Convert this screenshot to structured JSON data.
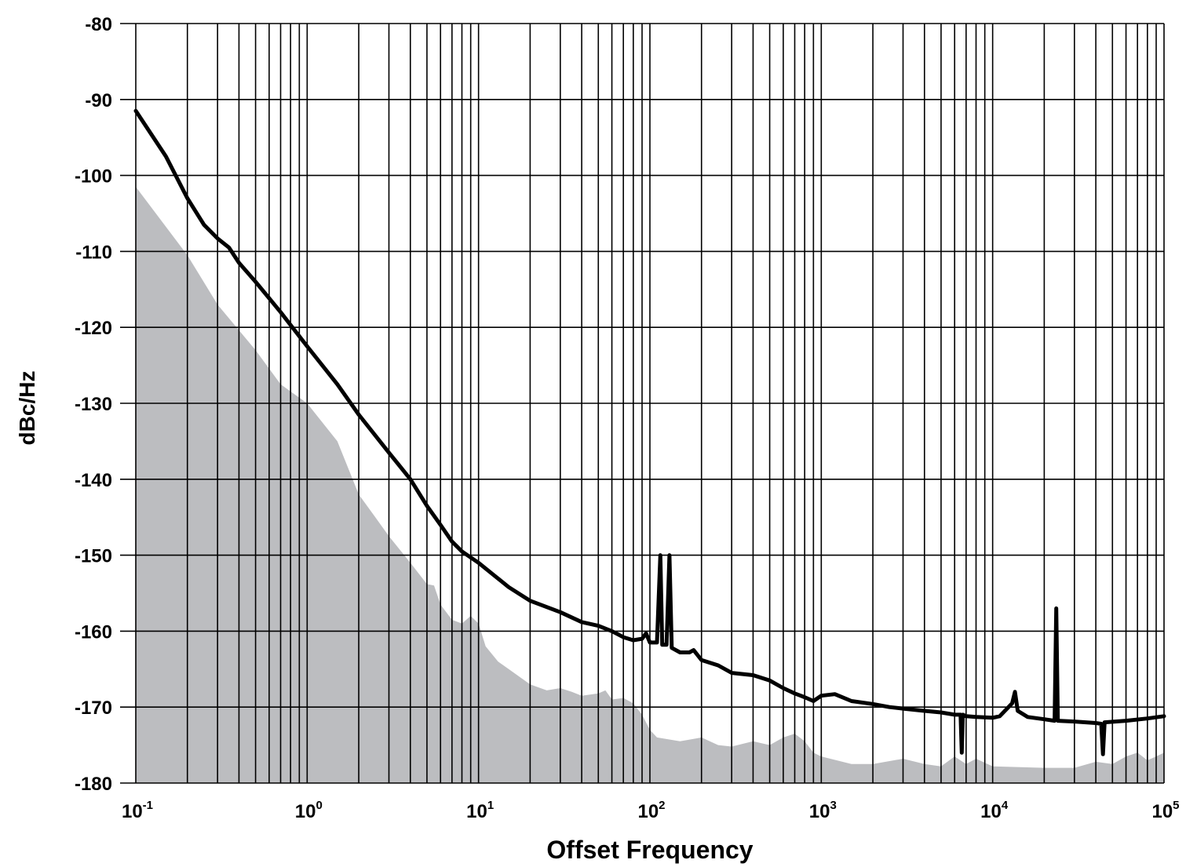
{
  "chart_data": {
    "type": "line",
    "title": "",
    "xlabel": "Offset Frequency",
    "ylabel": "dBc/Hz",
    "x_scale": "log",
    "xlim": [
      0.1,
      100000
    ],
    "ylim": [
      -180,
      -80
    ],
    "grid": true,
    "x_tick_labels": [
      {
        "value": 0.1,
        "base": "10",
        "exp": "-1"
      },
      {
        "value": 1,
        "base": "10",
        "exp": "0"
      },
      {
        "value": 10,
        "base": "10",
        "exp": "1"
      },
      {
        "value": 100,
        "base": "10",
        "exp": "2"
      },
      {
        "value": 1000,
        "base": "10",
        "exp": "3"
      },
      {
        "value": 10000,
        "base": "10",
        "exp": "4"
      },
      {
        "value": 100000,
        "base": "10",
        "exp": "5"
      }
    ],
    "y_tick_labels": [
      "-80",
      "-90",
      "-100",
      "-110",
      "-120",
      "-130",
      "-140",
      "-150",
      "-160",
      "-170",
      "-180"
    ],
    "series": [
      {
        "kind": "line",
        "color": "#000000",
        "points": [
          [
            0.1,
            -91.5
          ],
          [
            0.15,
            -97.5
          ],
          [
            0.2,
            -103
          ],
          [
            0.25,
            -106.5
          ],
          [
            0.3,
            -108.3
          ],
          [
            0.35,
            -109.5
          ],
          [
            0.4,
            -111.5
          ],
          [
            0.5,
            -114
          ],
          [
            0.7,
            -118
          ],
          [
            1,
            -122.5
          ],
          [
            1.5,
            -127.5
          ],
          [
            2,
            -131.5
          ],
          [
            3,
            -136.5
          ],
          [
            4,
            -140
          ],
          [
            5,
            -143.5
          ],
          [
            6,
            -146
          ],
          [
            7,
            -148.2
          ],
          [
            8,
            -149.5
          ],
          [
            9,
            -150.3
          ],
          [
            10,
            -151
          ],
          [
            15,
            -154.2
          ],
          [
            20,
            -156
          ],
          [
            30,
            -157.5
          ],
          [
            40,
            -158.8
          ],
          [
            50,
            -159.3
          ],
          [
            60,
            -160
          ],
          [
            70,
            -160.8
          ],
          [
            80,
            -161.2
          ],
          [
            90,
            -161
          ],
          [
            95,
            -160.3
          ],
          [
            100,
            -161.5
          ],
          [
            110,
            -161.5
          ],
          [
            115,
            -150
          ],
          [
            118,
            -161.8
          ],
          [
            125,
            -161.8
          ],
          [
            130,
            -150
          ],
          [
            134,
            -162.2
          ],
          [
            150,
            -162.8
          ],
          [
            170,
            -162.8
          ],
          [
            180,
            -162.5
          ],
          [
            200,
            -163.8
          ],
          [
            250,
            -164.5
          ],
          [
            300,
            -165.5
          ],
          [
            400,
            -165.8
          ],
          [
            500,
            -166.5
          ],
          [
            600,
            -167.5
          ],
          [
            700,
            -168.2
          ],
          [
            800,
            -168.7
          ],
          [
            900,
            -169.2
          ],
          [
            1000,
            -168.5
          ],
          [
            1200,
            -168.3
          ],
          [
            1500,
            -169.2
          ],
          [
            2000,
            -169.6
          ],
          [
            2500,
            -170
          ],
          [
            3000,
            -170.2
          ],
          [
            4000,
            -170.5
          ],
          [
            5000,
            -170.7
          ],
          [
            6000,
            -171
          ],
          [
            6500,
            -171
          ],
          [
            6600,
            -176
          ],
          [
            6700,
            -171
          ],
          [
            7000,
            -171.2
          ],
          [
            8000,
            -171.3
          ],
          [
            10000,
            -171.4
          ],
          [
            11000,
            -171.2
          ],
          [
            13000,
            -169.5
          ],
          [
            13500,
            -168
          ],
          [
            14000,
            -170.5
          ],
          [
            16000,
            -171.3
          ],
          [
            20000,
            -171.6
          ],
          [
            23000,
            -171.8
          ],
          [
            23500,
            -157
          ],
          [
            24000,
            -171.8
          ],
          [
            30000,
            -171.9
          ],
          [
            40000,
            -172.1
          ],
          [
            43000,
            -172.2
          ],
          [
            44000,
            -176.2
          ],
          [
            45000,
            -172
          ],
          [
            60000,
            -171.8
          ],
          [
            80000,
            -171.5
          ],
          [
            100000,
            -171.2
          ]
        ]
      },
      {
        "kind": "area",
        "color": "#bcbdc0",
        "points": [
          [
            0.1,
            -101.5
          ],
          [
            0.2,
            -110.5
          ],
          [
            0.3,
            -117
          ],
          [
            0.5,
            -123
          ],
          [
            0.7,
            -127.5
          ],
          [
            1,
            -130
          ],
          [
            1.5,
            -135
          ],
          [
            2,
            -142
          ],
          [
            2.5,
            -145
          ],
          [
            3,
            -147.5
          ],
          [
            4,
            -151
          ],
          [
            5,
            -153.8
          ],
          [
            5.5,
            -154
          ],
          [
            6,
            -156.5
          ],
          [
            7,
            -158.5
          ],
          [
            8,
            -159
          ],
          [
            9,
            -158
          ],
          [
            10,
            -159
          ],
          [
            11,
            -162
          ],
          [
            13,
            -164
          ],
          [
            15,
            -165
          ],
          [
            20,
            -167
          ],
          [
            25,
            -167.8
          ],
          [
            30,
            -167.5
          ],
          [
            35,
            -168
          ],
          [
            40,
            -168.5
          ],
          [
            50,
            -168.2
          ],
          [
            55,
            -167.8
          ],
          [
            60,
            -169
          ],
          [
            70,
            -168.8
          ],
          [
            80,
            -169.5
          ],
          [
            90,
            -171
          ],
          [
            100,
            -173
          ],
          [
            110,
            -174
          ],
          [
            150,
            -174.5
          ],
          [
            200,
            -174
          ],
          [
            250,
            -175
          ],
          [
            300,
            -175.2
          ],
          [
            400,
            -174.5
          ],
          [
            500,
            -175
          ],
          [
            600,
            -174
          ],
          [
            700,
            -173.5
          ],
          [
            800,
            -174.5
          ],
          [
            900,
            -176
          ],
          [
            1000,
            -176.5
          ],
          [
            1500,
            -177.5
          ],
          [
            2000,
            -177.5
          ],
          [
            3000,
            -176.8
          ],
          [
            4000,
            -177.5
          ],
          [
            5000,
            -177.8
          ],
          [
            6000,
            -176.5
          ],
          [
            7000,
            -177.5
          ],
          [
            8000,
            -176.8
          ],
          [
            10000,
            -177.8
          ],
          [
            20000,
            -178
          ],
          [
            30000,
            -178
          ],
          [
            40000,
            -177.2
          ],
          [
            50000,
            -177.5
          ],
          [
            60000,
            -176.5
          ],
          [
            70000,
            -176
          ],
          [
            80000,
            -177
          ],
          [
            90000,
            -176.5
          ],
          [
            100000,
            -176
          ]
        ]
      }
    ]
  }
}
